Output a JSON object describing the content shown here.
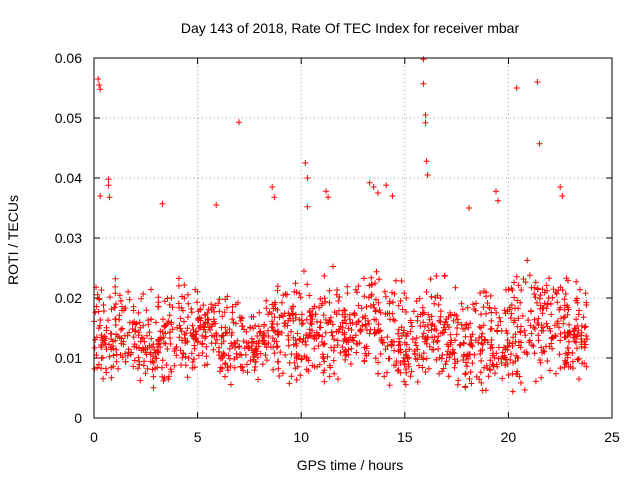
{
  "chart_data": {
    "type": "scatter",
    "title": "Day 143 of 2018, Rate Of TEC Index for receiver mbar",
    "xlabel": "GPS time / hours",
    "ylabel": "ROTI / TECUs",
    "xlim": [
      0,
      25
    ],
    "ylim": [
      0,
      0.06
    ],
    "x_ticks": [
      0,
      5,
      10,
      15,
      20,
      25
    ],
    "x_tick_labels": [
      "0",
      "5",
      "10",
      "15",
      "20",
      "25"
    ],
    "y_ticks": [
      0,
      0.01,
      0.02,
      0.03,
      0.04,
      0.05,
      0.06
    ],
    "y_tick_labels": [
      "0",
      "0.01",
      "0.02",
      "0.03",
      "0.04",
      "0.05",
      "0.06"
    ],
    "grid": true,
    "marker": "plus",
    "series": [
      {
        "name": "ROTI",
        "color": "#ff0000",
        "dense_band": {
          "description": "approximate per-hour envelope of the dense point cloud (upper, lower, typical)",
          "hour_centers": [
            0.5,
            1.5,
            2.5,
            3.5,
            4.5,
            5.5,
            6.5,
            7.5,
            8.5,
            9.5,
            10.5,
            11.5,
            12.5,
            13.5,
            14.5,
            15.5,
            16.5,
            17.5,
            18.5,
            19.5,
            20.5,
            21.5,
            22.5,
            23.3
          ],
          "upper": [
            0.024,
            0.024,
            0.022,
            0.023,
            0.025,
            0.021,
            0.023,
            0.02,
            0.024,
            0.024,
            0.025,
            0.026,
            0.025,
            0.027,
            0.025,
            0.022,
            0.026,
            0.024,
            0.023,
            0.022,
            0.027,
            0.028,
            0.027,
            0.024
          ],
          "lower": [
            0.005,
            0.006,
            0.004,
            0.005,
            0.006,
            0.008,
            0.005,
            0.006,
            0.006,
            0.005,
            0.006,
            0.005,
            0.006,
            0.005,
            0.004,
            0.004,
            0.004,
            0.004,
            0.004,
            0.005,
            0.004,
            0.005,
            0.004,
            0.006
          ],
          "typical": [
            0.013,
            0.014,
            0.012,
            0.013,
            0.014,
            0.015,
            0.013,
            0.012,
            0.014,
            0.013,
            0.014,
            0.014,
            0.014,
            0.015,
            0.013,
            0.012,
            0.014,
            0.013,
            0.013,
            0.012,
            0.015,
            0.016,
            0.015,
            0.014
          ],
          "points_per_hour": 60
        },
        "outliers": {
          "x": [
            0.2,
            0.25,
            0.3,
            0.3,
            0.7,
            0.7,
            0.75,
            3.3,
            5.9,
            7.0,
            8.6,
            8.7,
            10.2,
            10.3,
            10.3,
            11.2,
            11.3,
            13.3,
            13.5,
            13.7,
            14.1,
            14.4,
            15.9,
            15.9,
            16.0,
            16.0,
            16.05,
            16.1,
            18.1,
            19.4,
            19.5,
            20.4,
            21.4,
            21.5,
            22.5,
            22.6
          ],
          "y": [
            0.0565,
            0.0555,
            0.0548,
            0.037,
            0.0398,
            0.0388,
            0.0368,
            0.0357,
            0.0355,
            0.0493,
            0.0385,
            0.0368,
            0.0425,
            0.04,
            0.0352,
            0.0378,
            0.0368,
            0.0392,
            0.0385,
            0.0375,
            0.0388,
            0.037,
            0.0598,
            0.0557,
            0.0505,
            0.0492,
            0.0428,
            0.0405,
            0.035,
            0.0378,
            0.0362,
            0.055,
            0.056,
            0.0457,
            0.0385,
            0.037
          ]
        }
      }
    ]
  }
}
